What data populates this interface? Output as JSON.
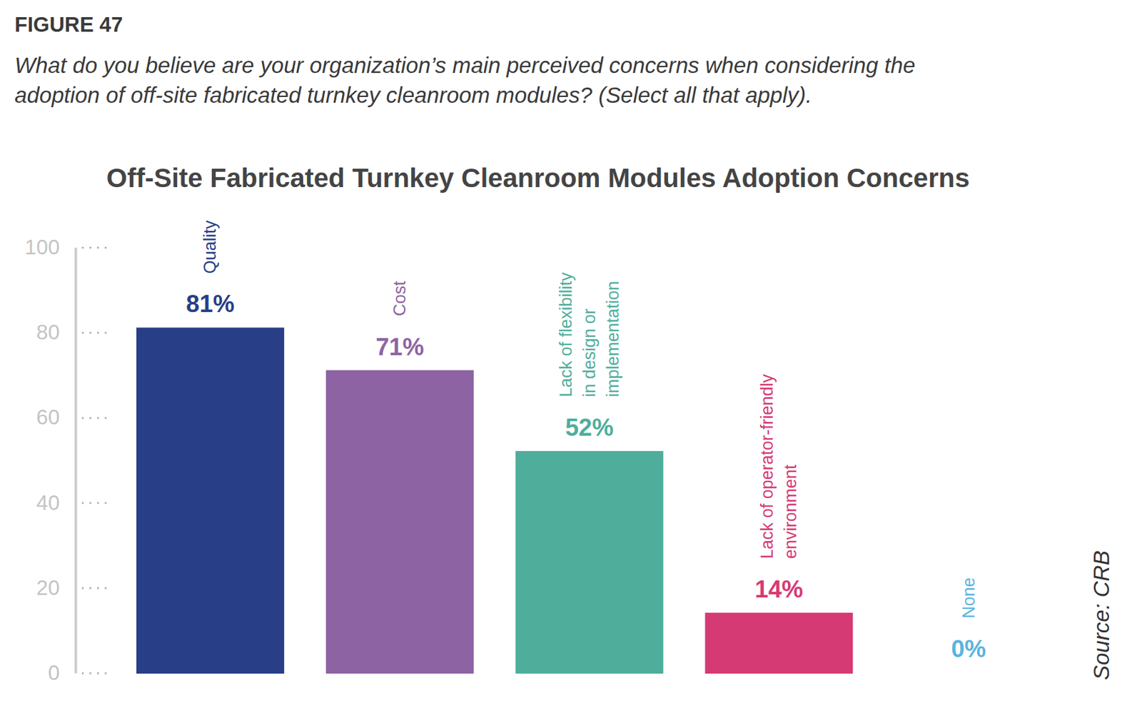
{
  "chart_data": {
    "type": "bar",
    "figure_label": "FIGURE 47",
    "subtitle": "What do you believe are your organization’s main perceived concerns when considering the\nadoption of off-site fabricated turnkey cleanroom modules? (Select all that apply).",
    "title": "Off-Site Fabricated Turnkey Cleanroom Modules Adoption Concerns",
    "categories": [
      "Quality",
      "Cost",
      "Lack of flexibility\nin design or\nimplementation",
      "Lack of operator-friendly\nenvironment",
      "None"
    ],
    "values": [
      81,
      71,
      52,
      14,
      0
    ],
    "value_labels": [
      "81%",
      "71%",
      "52%",
      "14%",
      "0%"
    ],
    "colors": [
      "#283f87",
      "#8e63a3",
      "#4fae9b",
      "#d63a74",
      "#5ab4e0"
    ],
    "ylim": [
      0,
      100
    ],
    "yticks": [
      0,
      20,
      40,
      60,
      80,
      100
    ],
    "grid": false,
    "data_labels": true,
    "source": "Source: CRB"
  }
}
